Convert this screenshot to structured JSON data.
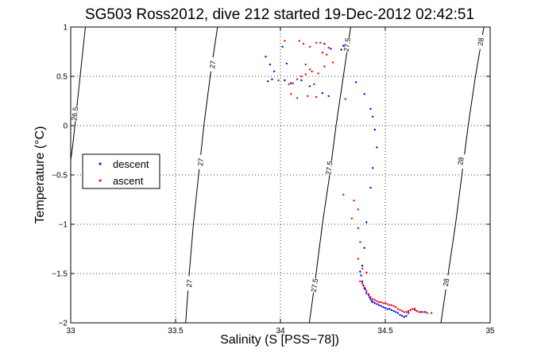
{
  "chart_data": {
    "type": "scatter",
    "title": "SG503 Ross2012, dive 212 started 19-Dec-2012 02:42:51",
    "xlabel": "Salinity (S [PSS−78])",
    "ylabel": "Temperature (°C)",
    "xlim": [
      33,
      35
    ],
    "ylim": [
      -2,
      1
    ],
    "xticks": [
      {
        "value": 33,
        "label": "33"
      },
      {
        "value": 33.5,
        "label": "33.5"
      },
      {
        "value": 34,
        "label": "34"
      },
      {
        "value": 34.5,
        "label": "34.5"
      },
      {
        "value": 35,
        "label": "35"
      }
    ],
    "yticks": [
      {
        "value": -2,
        "label": "−2"
      },
      {
        "value": -1.5,
        "label": "−1.5"
      },
      {
        "value": -1,
        "label": "−1"
      },
      {
        "value": -0.5,
        "label": "−0.5"
      },
      {
        "value": 0,
        "label": "0"
      },
      {
        "value": 0.5,
        "label": "0.5"
      },
      {
        "value": 1,
        "label": "1"
      }
    ],
    "grid": true,
    "legend": "middle-left",
    "contours": [
      {
        "label": "26.5",
        "points": [
          [
            33.07,
            1.0
          ],
          [
            33.05,
            0.6
          ],
          [
            33.03,
            0.2
          ],
          [
            33.01,
            -0.2
          ],
          [
            32.99,
            -0.5
          ]
        ],
        "labels": [
          {
            "x": 33.02,
            "y": 0.12
          }
        ]
      },
      {
        "label": "27",
        "points": [
          [
            33.7,
            1.0
          ],
          [
            33.665,
            0.5
          ],
          [
            33.635,
            0.0
          ],
          [
            33.61,
            -0.5
          ],
          [
            33.585,
            -1.0
          ],
          [
            33.565,
            -1.5
          ],
          [
            33.548,
            -2.0
          ]
        ],
        "labels": [
          {
            "x": 33.677,
            "y": 0.62
          },
          {
            "x": 33.62,
            "y": -0.37
          },
          {
            "x": 33.566,
            "y": -1.6
          }
        ]
      },
      {
        "label": "27.5",
        "points": [
          [
            34.335,
            1.0
          ],
          [
            34.3,
            0.5
          ],
          [
            34.265,
            0.0
          ],
          [
            34.235,
            -0.5
          ],
          [
            34.2,
            -1.0
          ],
          [
            34.17,
            -1.5
          ],
          [
            34.138,
            -2.0
          ]
        ],
        "labels": [
          {
            "x": 34.318,
            "y": 0.82
          },
          {
            "x": 34.232,
            "y": -0.43
          },
          {
            "x": 34.163,
            "y": -1.62
          }
        ]
      },
      {
        "label": "28",
        "points": [
          [
            34.97,
            1.0
          ],
          [
            34.93,
            0.5
          ],
          [
            34.895,
            0.0
          ],
          [
            34.865,
            -0.5
          ],
          [
            34.835,
            -1.0
          ],
          [
            34.8,
            -1.5
          ],
          [
            34.765,
            -2.0
          ]
        ],
        "labels": [
          {
            "x": 34.955,
            "y": 0.85
          },
          {
            "x": 34.86,
            "y": -0.36
          },
          {
            "x": 34.79,
            "y": -1.59
          }
        ]
      }
    ],
    "series": [
      {
        "name": "descent",
        "color": "#0000ff",
        "points": [
          [
            33.93,
            0.7
          ],
          [
            33.95,
            0.62
          ],
          [
            33.97,
            0.55
          ],
          [
            33.94,
            0.45
          ],
          [
            33.96,
            0.47
          ],
          [
            34.01,
            0.8
          ],
          [
            34.03,
            0.63
          ],
          [
            34.02,
            0.46
          ],
          [
            34.05,
            0.43
          ],
          [
            34.1,
            0.46
          ],
          [
            34.14,
            0.4
          ],
          [
            34.2,
            0.33
          ],
          [
            34.23,
            0.3
          ],
          [
            34.24,
            0.78
          ],
          [
            34.29,
            0.77
          ],
          [
            34.21,
            0.83
          ],
          [
            34.3,
            0.81
          ],
          [
            34.36,
            0.44
          ],
          [
            34.4,
            0.32
          ],
          [
            34.43,
            0.17
          ],
          [
            34.44,
            0.09
          ],
          [
            34.45,
            -0.04
          ],
          [
            34.46,
            -0.22
          ],
          [
            34.44,
            -0.43
          ],
          [
            34.43,
            -0.63
          ],
          [
            34.41,
            -0.98
          ],
          [
            34.4,
            -1.24
          ],
          [
            34.39,
            -1.42
          ],
          [
            34.38,
            -1.48
          ],
          [
            34.385,
            -1.52
          ],
          [
            34.39,
            -1.58
          ],
          [
            34.395,
            -1.62
          ],
          [
            34.4,
            -1.65
          ],
          [
            34.405,
            -1.66
          ],
          [
            34.41,
            -1.7
          ],
          [
            34.42,
            -1.72
          ],
          [
            34.425,
            -1.74
          ],
          [
            34.43,
            -1.76
          ],
          [
            34.435,
            -1.78
          ],
          [
            34.44,
            -1.79
          ],
          [
            34.45,
            -1.8
          ],
          [
            34.46,
            -1.81
          ],
          [
            34.47,
            -1.82
          ],
          [
            34.48,
            -1.83
          ],
          [
            34.49,
            -1.84
          ],
          [
            34.5,
            -1.85
          ],
          [
            34.51,
            -1.86
          ],
          [
            34.52,
            -1.86
          ],
          [
            34.53,
            -1.87
          ],
          [
            34.54,
            -1.88
          ],
          [
            34.55,
            -1.89
          ],
          [
            34.56,
            -1.9
          ],
          [
            34.57,
            -1.92
          ],
          [
            34.58,
            -1.93
          ],
          [
            34.59,
            -1.94
          ],
          [
            34.6,
            -1.93
          ],
          [
            34.61,
            -1.9
          ],
          [
            34.62,
            -1.87
          ],
          [
            34.64,
            -1.86
          ],
          [
            34.65,
            -1.88
          ],
          [
            34.67,
            -1.89
          ],
          [
            34.69,
            -1.89
          ]
        ]
      },
      {
        "name": "ascent",
        "color": "#ff0000",
        "points": [
          [
            34.02,
            0.86
          ],
          [
            34.09,
            0.86
          ],
          [
            34.11,
            0.83
          ],
          [
            34.14,
            0.8
          ],
          [
            34.17,
            0.84
          ],
          [
            34.19,
            0.84
          ],
          [
            34.2,
            0.74
          ],
          [
            34.22,
            0.72
          ],
          [
            34.23,
            0.79
          ],
          [
            34.21,
            0.6
          ],
          [
            34.12,
            0.62
          ],
          [
            34.14,
            0.57
          ],
          [
            34.12,
            0.52
          ],
          [
            34.1,
            0.5
          ],
          [
            34.08,
            0.47
          ],
          [
            34.06,
            0.43
          ],
          [
            34.04,
            0.42
          ],
          [
            33.99,
            0.46
          ],
          [
            34.05,
            0.32
          ],
          [
            34.08,
            0.28
          ],
          [
            34.17,
            0.29
          ],
          [
            34.16,
            0.42
          ],
          [
            34.18,
            0.53
          ],
          [
            34.15,
            0.55
          ],
          [
            34.13,
            0.3
          ],
          [
            34.25,
            0.64
          ],
          [
            34.31,
            0.27
          ],
          [
            34.3,
            -0.7
          ],
          [
            34.35,
            -0.76
          ],
          [
            34.37,
            -0.85
          ],
          [
            34.34,
            -0.94
          ],
          [
            34.37,
            -1.04
          ],
          [
            34.38,
            -1.18
          ],
          [
            34.37,
            -1.35
          ],
          [
            34.39,
            -1.45
          ],
          [
            34.41,
            -1.49
          ],
          [
            34.38,
            -1.58
          ],
          [
            34.39,
            -1.6
          ],
          [
            34.4,
            -1.64
          ],
          [
            34.41,
            -1.68
          ],
          [
            34.42,
            -1.71
          ],
          [
            34.43,
            -1.74
          ],
          [
            34.44,
            -1.76
          ],
          [
            34.45,
            -1.77
          ],
          [
            34.46,
            -1.78
          ],
          [
            34.47,
            -1.79
          ],
          [
            34.48,
            -1.79
          ],
          [
            34.49,
            -1.8
          ],
          [
            34.5,
            -1.8
          ],
          [
            34.51,
            -1.81
          ],
          [
            34.52,
            -1.82
          ],
          [
            34.53,
            -1.82
          ],
          [
            34.54,
            -1.83
          ],
          [
            34.55,
            -1.84
          ],
          [
            34.56,
            -1.86
          ],
          [
            34.57,
            -1.87
          ],
          [
            34.58,
            -1.88
          ],
          [
            34.59,
            -1.89
          ],
          [
            34.6,
            -1.89
          ],
          [
            34.61,
            -1.88
          ],
          [
            34.62,
            -1.87
          ],
          [
            34.63,
            -1.86
          ],
          [
            34.64,
            -1.87
          ],
          [
            34.65,
            -1.88
          ],
          [
            34.66,
            -1.89
          ],
          [
            34.68,
            -1.89
          ],
          [
            34.7,
            -1.9
          ],
          [
            34.72,
            -1.9
          ]
        ]
      }
    ]
  }
}
